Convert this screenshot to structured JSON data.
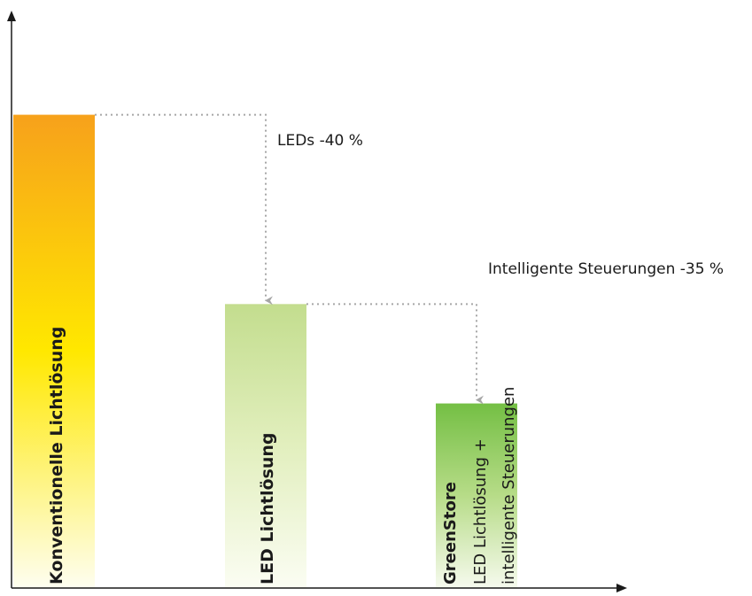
{
  "chart_data": {
    "type": "bar",
    "categories": [
      [
        "Konventionelle Lichtlösung"
      ],
      [
        "LED Lichtlösung"
      ],
      [
        "GreenStore",
        "LED Lichtlösung +",
        "intelligente Steuerungen"
      ]
    ],
    "values": [
      100,
      60,
      39
    ],
    "ylim": [
      0,
      122
    ],
    "axis_ticks": false,
    "grid": false,
    "gradients": [
      {
        "top": "#f7a11b",
        "mid": "#ffe800",
        "bottom": "#fefef0"
      },
      {
        "top": "#c3dd8e",
        "mid": "#e2efbe",
        "bottom": "#fbfdf3"
      },
      {
        "top": "#74bf44",
        "mid": "#b7dc88",
        "bottom": "#f6faee"
      }
    ],
    "annotations": [
      {
        "text": "LEDs -40 %",
        "from": 0,
        "to": 1
      },
      {
        "text": "Intelligente Steuerungen -35 %",
        "from": 1,
        "to": 2
      }
    ],
    "colors": {
      "axis": "#1a1a1a",
      "connector": "#a6a6a6"
    }
  }
}
